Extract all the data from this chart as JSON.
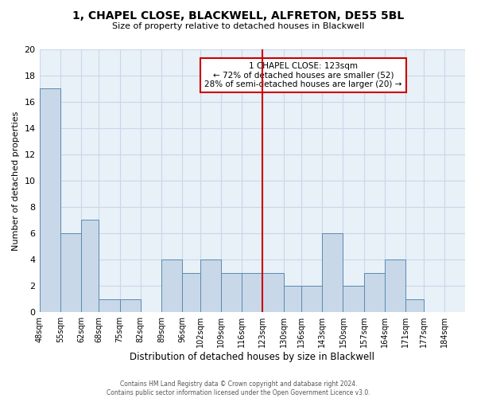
{
  "title_line1": "1, CHAPEL CLOSE, BLACKWELL, ALFRETON, DE55 5BL",
  "title_line2": "Size of property relative to detached houses in Blackwell",
  "xlabel": "Distribution of detached houses by size in Blackwell",
  "ylabel": "Number of detached properties",
  "bin_labels": [
    "48sqm",
    "55sqm",
    "62sqm",
    "68sqm",
    "75sqm",
    "82sqm",
    "89sqm",
    "96sqm",
    "102sqm",
    "109sqm",
    "116sqm",
    "123sqm",
    "130sqm",
    "136sqm",
    "143sqm",
    "150sqm",
    "157sqm",
    "164sqm",
    "171sqm",
    "177sqm",
    "184sqm"
  ],
  "bar_heights": [
    17,
    6,
    7,
    1,
    1,
    0,
    4,
    3,
    4,
    3,
    3,
    3,
    2,
    2,
    6,
    2,
    3,
    4,
    1,
    0,
    0
  ],
  "bin_edges": [
    48,
    55,
    62,
    68,
    75,
    82,
    89,
    96,
    102,
    109,
    116,
    123,
    130,
    136,
    143,
    150,
    157,
    164,
    171,
    177,
    184
  ],
  "bar_color": "#c8d8e8",
  "bar_edge_color": "#5a8ab0",
  "vline_x": 123,
  "vline_color": "#cc0000",
  "annotation_title": "1 CHAPEL CLOSE: 123sqm",
  "annotation_line1": "← 72% of detached houses are smaller (52)",
  "annotation_line2": "28% of semi-detached houses are larger (20) →",
  "annotation_box_color": "#cc0000",
  "ylim": [
    0,
    20
  ],
  "yticks": [
    0,
    2,
    4,
    6,
    8,
    10,
    12,
    14,
    16,
    18,
    20
  ],
  "grid_color": "#c8d8e8",
  "bg_color": "#e8f0f8",
  "footnote1": "Contains HM Land Registry data © Crown copyright and database right 2024.",
  "footnote2": "Contains public sector information licensed under the Open Government Licence v3.0."
}
